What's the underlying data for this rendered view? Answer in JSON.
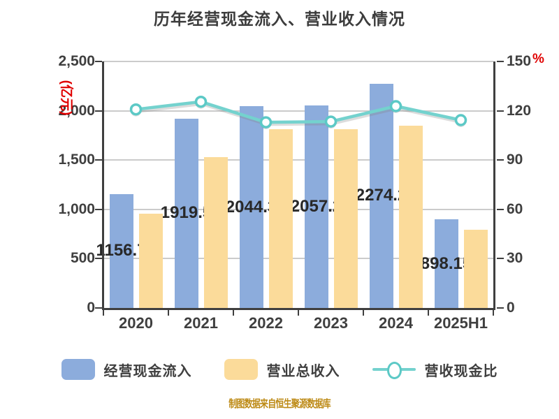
{
  "title": "历年经营现金流入、营业收入情况",
  "caption": "制图数据来自恒生聚源数据库",
  "left_axis": {
    "unit_label": "(亿元)",
    "ticks": [
      "2,500",
      "2,000",
      "1,500",
      "1,000",
      "500",
      "0"
    ],
    "min": 0,
    "max": 2500
  },
  "right_axis": {
    "unit_label": "%",
    "ticks": [
      "150",
      "120",
      "90",
      "60",
      "30",
      "0"
    ],
    "min": 0,
    "max": 150
  },
  "chart_data": {
    "type": "bar+line",
    "title": "历年经营现金流入、营业收入情况",
    "categories": [
      "2020",
      "2021",
      "2022",
      "2023",
      "2024",
      "2025H1"
    ],
    "grid": true,
    "legend_position": "bottom",
    "left_ylim": [
      0,
      2500
    ],
    "right_ylim": [
      0,
      150
    ],
    "series": [
      {
        "name": "经营现金流入",
        "type": "bar",
        "axis": "left",
        "color": "#8cacdc",
        "values": [
          1156.7,
          1919.5,
          2044.3,
          2057.2,
          2274.2,
          898.15
        ],
        "labels": [
          "1156.7",
          "1919.5",
          "2044.3",
          "2057.2",
          "2274.2",
          "898.15"
        ]
      },
      {
        "name": "营业总收入",
        "type": "bar",
        "axis": "left",
        "color": "#fbdb9a",
        "values": [
          958,
          1530,
          1810,
          1815,
          1845,
          790
        ]
      },
      {
        "name": "营收现金比",
        "type": "line",
        "axis": "right",
        "color": "#74d2ce",
        "marker": "circle",
        "values": [
          120.8,
          125.5,
          113.0,
          113.4,
          122.8,
          114.3
        ]
      }
    ]
  },
  "legend": [
    {
      "label": "经营现金流入",
      "swatch": "bar-blue"
    },
    {
      "label": "营业总收入",
      "swatch": "bar-yellow"
    },
    {
      "label": "营收现金比",
      "swatch": "line-circle"
    }
  ],
  "colors": {
    "bar_blue": "#8cacdc",
    "bar_yellow": "#fbdb9a",
    "line_teal": "#74d2ce",
    "marker_stroke": "#5cc9c6",
    "axis_text": "#3f3f3f",
    "grid": "#cbcbcb",
    "red_unit": "#e00000",
    "caption_gold": "#bd8a15",
    "bar_label": "#282828"
  }
}
